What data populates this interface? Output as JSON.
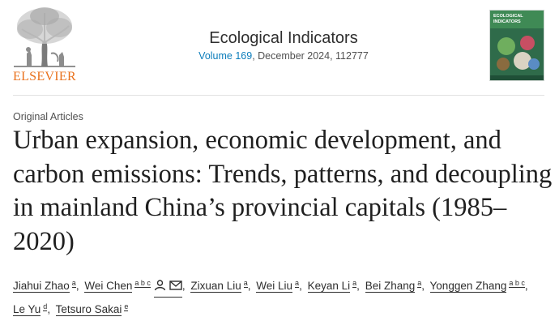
{
  "header": {
    "publisher": "ELSEVIER",
    "journal_title": "Ecological Indicators",
    "volume_label": "Volume 169",
    "issue_info": ", December 2024, 112777",
    "cover_title": "ECOLOGICAL\nINDICATORS",
    "colors": {
      "publisher_orange": "#e9711c",
      "link_blue": "#0c7dbb",
      "cover_green": "#3f8a55"
    }
  },
  "article": {
    "section": "Original Articles",
    "title": "Urban expansion, economic development, and carbon emissions: Trends, patterns, and decoupling in mainland China’s provincial capitals (1985–2020)",
    "authors": [
      {
        "name": "Jiahui Zhao",
        "sup": "a"
      },
      {
        "name": "Wei Chen",
        "sup": "a b c",
        "icons": [
          "person-icon",
          "envelope-icon"
        ]
      },
      {
        "name": "Zixuan Liu",
        "sup": "a"
      },
      {
        "name": "Wei Liu",
        "sup": "a"
      },
      {
        "name": "Keyan Li",
        "sup": "a"
      },
      {
        "name": "Bei Zhang",
        "sup": "a"
      },
      {
        "name": "Yonggen Zhang",
        "sup": "a b c"
      },
      {
        "name": "Le Yu",
        "sup": "d"
      },
      {
        "name": "Tetsuro Sakai",
        "sup": "e"
      }
    ]
  }
}
